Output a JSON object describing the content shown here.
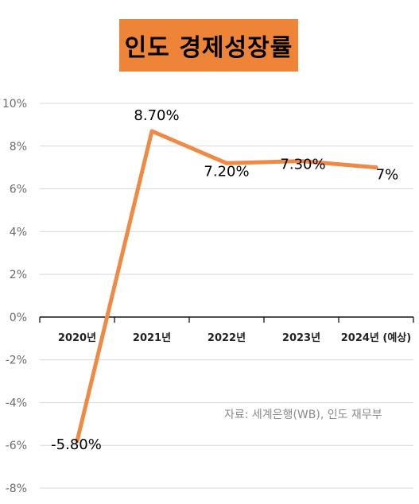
{
  "chart_data": {
    "type": "line",
    "title": "인도 경제성장률",
    "categories": [
      "2020년",
      "2021년",
      "2022년",
      "2023년",
      "2024년 (예상)"
    ],
    "series": [
      {
        "values": [
          -5.8,
          8.7,
          7.2,
          7.3,
          7.0
        ],
        "color": "#ee8a45"
      }
    ],
    "data_labels": [
      "-5.80%",
      "8.70%",
      "7.20%",
      "7.30%",
      "7%"
    ],
    "y_ticks": [
      "10%",
      "8%",
      "6%",
      "4%",
      "2%",
      "0%",
      "-2%",
      "-4%",
      "-6%",
      "-8%"
    ],
    "ylim": [
      -8,
      10
    ],
    "grid": true,
    "source": "자료: 세계은행(WB), 인도 재무부"
  }
}
